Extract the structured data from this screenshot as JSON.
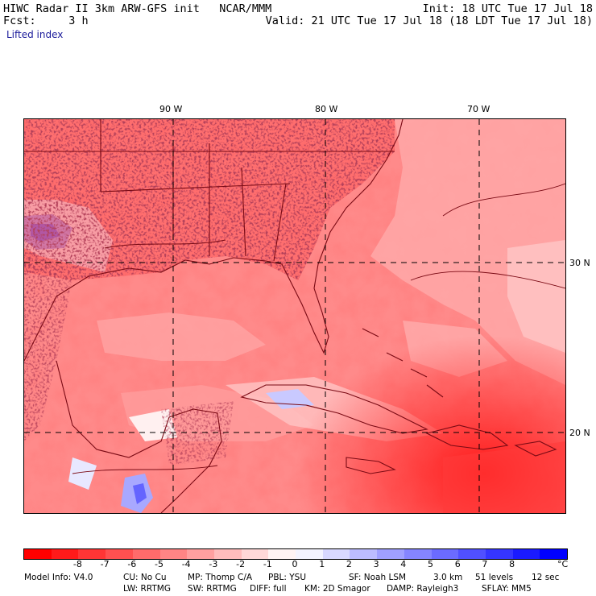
{
  "header": {
    "left_line1": "HIWC Radar II 3km ARW-GFS init   NCAR/MMM",
    "left_line2": "Fcst:     3 h",
    "right_line1": "Init: 18 UTC Tue 17 Jul 18",
    "right_line2": "Valid: 21 UTC Tue 17 Jul 18 (18 LDT Tue 17 Jul 18)",
    "field": "Lifted index"
  },
  "map": {
    "lon_labels": [
      "90 W",
      "80 W",
      "70 W"
    ],
    "lat_labels": [
      "30 N",
      "20 N"
    ]
  },
  "colorbar": {
    "colors": [
      "#ff0000",
      "#ff1a1a",
      "#ff3535",
      "#ff5050",
      "#ff6b6b",
      "#ff8585",
      "#ffa0a0",
      "#ffbcbc",
      "#ffd8d8",
      "#fff4f4",
      "#f4f4ff",
      "#d8d8ff",
      "#bcbcff",
      "#a0a0ff",
      "#8585ff",
      "#6b6bff",
      "#5050ff",
      "#3535ff",
      "#1a1aff",
      "#0000ff"
    ],
    "ticks": [
      "-8",
      "-7",
      "-6",
      "-5",
      "-4",
      "-3",
      "-2",
      "-1",
      "0",
      "1",
      "2",
      "3",
      "4",
      "5",
      "6",
      "7",
      "8"
    ],
    "unit": "°C"
  },
  "footer": {
    "line1": [
      "Model Info: V4.0",
      "CU: No Cu",
      "MP: Thomp C/A",
      "PBL: YSU",
      "SF: Noah LSM",
      "3.0 km",
      "51 levels",
      "12 sec"
    ],
    "line2": [
      "LW: RRTMG",
      "SW: RRTMG",
      "DIFF: full",
      "KM: 2D Smagor",
      "DAMP: Rayleigh3",
      "SFLAY: MM5"
    ]
  }
}
